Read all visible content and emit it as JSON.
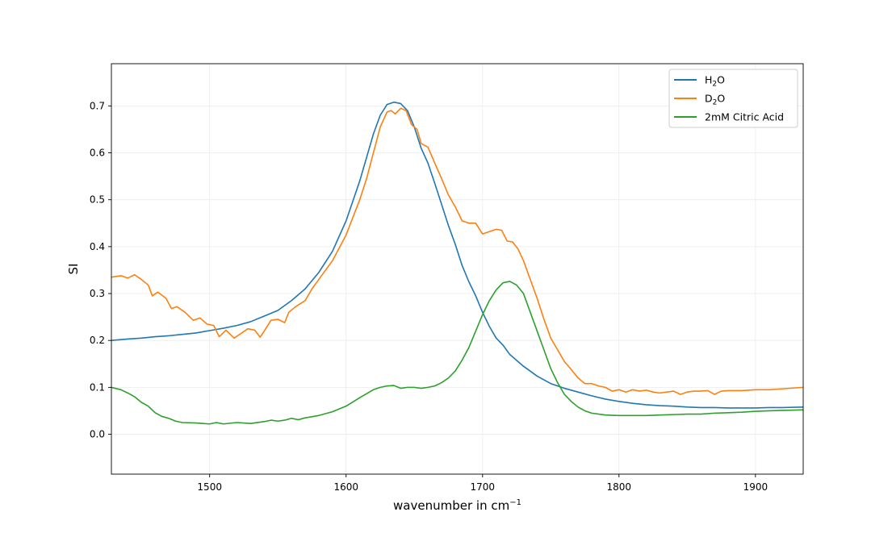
{
  "chart_data": {
    "type": "line",
    "xlabel": "wavenumber in cm",
    "xlabel_sup": "−1",
    "ylabel": "SI",
    "xlim": [
      1428,
      1935
    ],
    "ylim": [
      -0.085,
      0.79
    ],
    "xticks": [
      1500,
      1600,
      1700,
      1800,
      1900
    ],
    "xtick_labels": [
      "1500",
      "1600",
      "1700",
      "1800",
      "1900"
    ],
    "yticks": [
      0.0,
      0.1,
      0.2,
      0.3,
      0.4,
      0.5,
      0.6,
      0.7
    ],
    "ytick_labels": [
      "0.0",
      "0.1",
      "0.2",
      "0.3",
      "0.4",
      "0.5",
      "0.6",
      "0.7"
    ],
    "grid": true,
    "legend_position": "top-right",
    "series": [
      {
        "name": "H2O",
        "name_main": "H",
        "name_sub": "2",
        "name_tail": "O",
        "color": "#1f77b4",
        "x": [
          1428,
          1440,
          1450,
          1460,
          1470,
          1480,
          1490,
          1500,
          1510,
          1520,
          1530,
          1540,
          1550,
          1560,
          1570,
          1580,
          1590,
          1600,
          1610,
          1615,
          1620,
          1625,
          1630,
          1635,
          1640,
          1645,
          1650,
          1655,
          1660,
          1665,
          1670,
          1675,
          1680,
          1685,
          1690,
          1695,
          1700,
          1705,
          1710,
          1715,
          1720,
          1730,
          1740,
          1750,
          1760,
          1770,
          1780,
          1790,
          1800,
          1810,
          1820,
          1830,
          1840,
          1850,
          1860,
          1870,
          1880,
          1890,
          1900,
          1910,
          1920,
          1935
        ],
        "y": [
          0.2,
          0.203,
          0.205,
          0.208,
          0.21,
          0.213,
          0.216,
          0.221,
          0.226,
          0.232,
          0.24,
          0.252,
          0.264,
          0.285,
          0.31,
          0.345,
          0.39,
          0.455,
          0.54,
          0.59,
          0.64,
          0.68,
          0.703,
          0.708,
          0.705,
          0.69,
          0.655,
          0.61,
          0.578,
          0.535,
          0.49,
          0.445,
          0.405,
          0.36,
          0.325,
          0.295,
          0.26,
          0.23,
          0.205,
          0.19,
          0.17,
          0.145,
          0.124,
          0.108,
          0.098,
          0.09,
          0.082,
          0.075,
          0.07,
          0.066,
          0.063,
          0.061,
          0.06,
          0.058,
          0.057,
          0.057,
          0.056,
          0.056,
          0.056,
          0.057,
          0.057,
          0.058
        ]
      },
      {
        "name": "D2O",
        "name_main": "D",
        "name_sub": "2",
        "name_tail": "O",
        "color": "#ff7f0e",
        "x": [
          1428,
          1435,
          1440,
          1445,
          1450,
          1455,
          1458,
          1462,
          1468,
          1472,
          1476,
          1482,
          1488,
          1493,
          1498,
          1503,
          1507,
          1512,
          1518,
          1523,
          1528,
          1533,
          1537,
          1540,
          1545,
          1550,
          1555,
          1558,
          1563,
          1570,
          1575,
          1580,
          1590,
          1600,
          1610,
          1615,
          1620,
          1625,
          1630,
          1633,
          1636,
          1640,
          1644,
          1648,
          1652,
          1655,
          1660,
          1665,
          1670,
          1675,
          1680,
          1685,
          1690,
          1695,
          1700,
          1705,
          1710,
          1714,
          1718,
          1722,
          1726,
          1730,
          1735,
          1740,
          1745,
          1750,
          1755,
          1760,
          1765,
          1770,
          1775,
          1780,
          1785,
          1790,
          1795,
          1800,
          1805,
          1810,
          1815,
          1820,
          1825,
          1830,
          1835,
          1840,
          1845,
          1850,
          1855,
          1860,
          1865,
          1870,
          1875,
          1880,
          1890,
          1900,
          1910,
          1920,
          1935
        ],
        "y": [
          0.335,
          0.338,
          0.333,
          0.34,
          0.33,
          0.318,
          0.295,
          0.303,
          0.29,
          0.268,
          0.272,
          0.26,
          0.243,
          0.248,
          0.235,
          0.232,
          0.208,
          0.222,
          0.205,
          0.215,
          0.225,
          0.222,
          0.207,
          0.22,
          0.243,
          0.245,
          0.238,
          0.26,
          0.272,
          0.285,
          0.31,
          0.33,
          0.37,
          0.425,
          0.5,
          0.545,
          0.6,
          0.655,
          0.687,
          0.69,
          0.683,
          0.695,
          0.69,
          0.66,
          0.65,
          0.62,
          0.612,
          0.578,
          0.545,
          0.51,
          0.485,
          0.455,
          0.45,
          0.45,
          0.427,
          0.432,
          0.437,
          0.435,
          0.412,
          0.41,
          0.395,
          0.37,
          0.33,
          0.29,
          0.245,
          0.205,
          0.18,
          0.155,
          0.138,
          0.12,
          0.108,
          0.108,
          0.103,
          0.1,
          0.092,
          0.095,
          0.09,
          0.095,
          0.092,
          0.094,
          0.09,
          0.088,
          0.09,
          0.092,
          0.085,
          0.09,
          0.092,
          0.092,
          0.093,
          0.085,
          0.092,
          0.093,
          0.093,
          0.095,
          0.095,
          0.097,
          0.1
        ]
      },
      {
        "name": "2mM Citric Acid",
        "color": "#2ca02c",
        "x": [
          1428,
          1435,
          1440,
          1445,
          1450,
          1455,
          1460,
          1465,
          1470,
          1475,
          1480,
          1490,
          1500,
          1505,
          1510,
          1520,
          1530,
          1540,
          1545,
          1550,
          1555,
          1560,
          1565,
          1570,
          1580,
          1590,
          1600,
          1610,
          1620,
          1625,
          1630,
          1635,
          1640,
          1645,
          1650,
          1655,
          1660,
          1665,
          1670,
          1675,
          1680,
          1685,
          1690,
          1695,
          1700,
          1705,
          1710,
          1715,
          1720,
          1725,
          1730,
          1735,
          1740,
          1745,
          1750,
          1755,
          1760,
          1765,
          1770,
          1775,
          1780,
          1790,
          1800,
          1810,
          1820,
          1830,
          1840,
          1850,
          1860,
          1870,
          1880,
          1890,
          1900,
          1910,
          1920,
          1935
        ],
        "y": [
          0.1,
          0.095,
          0.088,
          0.08,
          0.068,
          0.06,
          0.046,
          0.038,
          0.034,
          0.028,
          0.025,
          0.024,
          0.022,
          0.025,
          0.022,
          0.025,
          0.023,
          0.027,
          0.03,
          0.028,
          0.03,
          0.034,
          0.031,
          0.035,
          0.04,
          0.048,
          0.06,
          0.078,
          0.095,
          0.1,
          0.103,
          0.104,
          0.098,
          0.1,
          0.1,
          0.098,
          0.1,
          0.103,
          0.11,
          0.12,
          0.135,
          0.158,
          0.185,
          0.22,
          0.255,
          0.285,
          0.308,
          0.323,
          0.326,
          0.318,
          0.3,
          0.26,
          0.22,
          0.18,
          0.14,
          0.11,
          0.085,
          0.07,
          0.058,
          0.05,
          0.045,
          0.041,
          0.04,
          0.04,
          0.04,
          0.041,
          0.042,
          0.043,
          0.043,
          0.045,
          0.046,
          0.047,
          0.049,
          0.05,
          0.051,
          0.052
        ]
      }
    ]
  }
}
